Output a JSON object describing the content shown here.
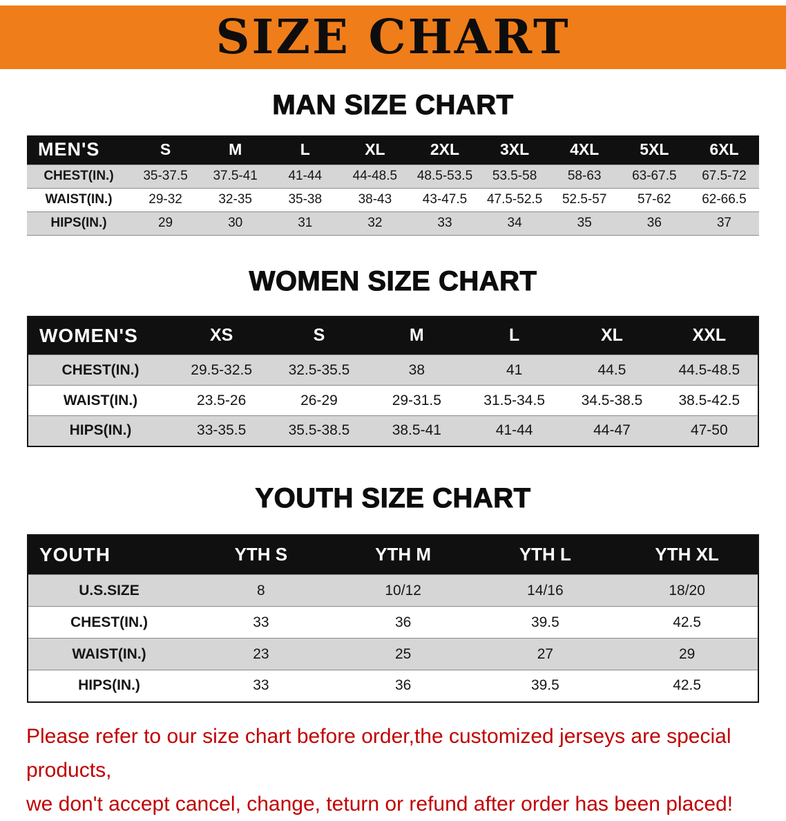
{
  "banner": {
    "title": "SIZE CHART"
  },
  "colors": {
    "banner_bg": "#EF7D1A",
    "table_header_bg": "#101010",
    "row_alt_bg": "#D6D6D6",
    "disclaimer_text": "#C00000"
  },
  "sections": [
    {
      "heading": "MAN SIZE CHART",
      "table": {
        "header": [
          "MEN'S",
          "S",
          "M",
          "L",
          "XL",
          "2XL",
          "3XL",
          "4XL",
          "5XL",
          "6XL"
        ],
        "rows": [
          [
            "CHEST(IN.)",
            "35-37.5",
            "37.5-41",
            "41-44",
            "44-48.5",
            "48.5-53.5",
            "53.5-58",
            "58-63",
            "63-67.5",
            "67.5-72"
          ],
          [
            "WAIST(IN.)",
            "29-32",
            "32-35",
            "35-38",
            "38-43",
            "43-47.5",
            "47.5-52.5",
            "52.5-57",
            "57-62",
            "62-66.5"
          ],
          [
            "HIPS(IN.)",
            "29",
            "30",
            "31",
            "32",
            "33",
            "34",
            "35",
            "36",
            "37"
          ]
        ]
      }
    },
    {
      "heading": "WOMEN SIZE CHART",
      "table": {
        "header": [
          "WOMEN'S",
          "XS",
          "S",
          "M",
          "L",
          "XL",
          "XXL"
        ],
        "rows": [
          [
            "CHEST(IN.)",
            "29.5-32.5",
            "32.5-35.5",
            "38",
            "41",
            "44.5",
            "44.5-48.5"
          ],
          [
            "WAIST(IN.)",
            "23.5-26",
            "26-29",
            "29-31.5",
            "31.5-34.5",
            "34.5-38.5",
            "38.5-42.5"
          ],
          [
            "HIPS(IN.)",
            "33-35.5",
            "35.5-38.5",
            "38.5-41",
            "41-44",
            "44-47",
            "47-50"
          ]
        ]
      }
    },
    {
      "heading": "YOUTH SIZE CHART",
      "table": {
        "header": [
          "YOUTH",
          "YTH S",
          "YTH M",
          "YTH L",
          "YTH XL"
        ],
        "rows": [
          [
            "U.S.SIZE",
            "8",
            "10/12",
            "14/16",
            "18/20"
          ],
          [
            "CHEST(IN.)",
            "33",
            "36",
            "39.5",
            "42.5"
          ],
          [
            "WAIST(IN.)",
            "23",
            "25",
            "27",
            "29"
          ],
          [
            "HIPS(IN.)",
            "33",
            "36",
            "39.5",
            "42.5"
          ]
        ]
      }
    }
  ],
  "footer": {
    "line1": "Please refer to our size chart before order,the customized jerseys are special products,",
    "line2": "we don't accept cancel, change, teturn or refund after order has been placed!"
  }
}
